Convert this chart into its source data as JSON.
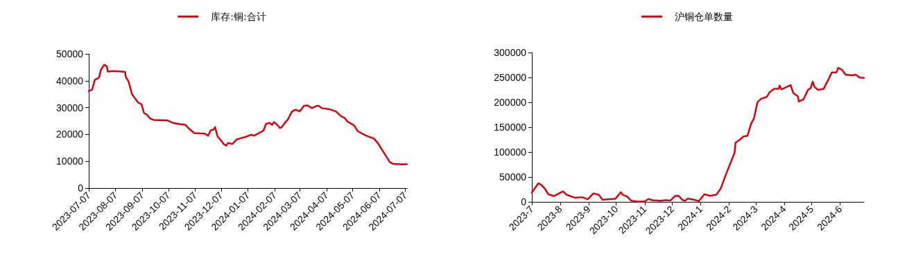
{
  "chart_data": [
    {
      "type": "line",
      "legend": "top",
      "grid": false,
      "marker": "none",
      "line_style": "solid",
      "x": [
        "2023-07-07",
        "2023-07-11",
        "2023-07-14",
        "2023-07-19",
        "2023-07-21",
        "2023-07-25",
        "2023-07-28",
        "2023-07-29",
        "2023-08-05",
        "2023-08-11",
        "2023-08-18",
        "2023-08-19",
        "2023-08-22",
        "2023-08-26",
        "2023-09-02",
        "2023-09-06",
        "2023-09-09",
        "2023-09-12",
        "2023-09-16",
        "2023-09-20",
        "2023-10-06",
        "2023-10-13",
        "2023-10-27",
        "2023-10-31",
        "2023-11-06",
        "2023-11-18",
        "2023-11-22",
        "2023-11-25",
        "2023-11-28",
        "2023-11-30",
        "2023-12-03",
        "2023-12-06",
        "2023-12-10",
        "2023-12-13",
        "2023-12-15",
        "2023-12-20",
        "2023-12-25",
        "2023-12-30",
        "2024-01-04",
        "2024-01-11",
        "2024-01-14",
        "2024-01-20",
        "2024-01-25",
        "2024-01-28",
        "2024-02-01",
        "2024-02-04",
        "2024-02-06",
        "2024-02-09",
        "2024-02-13",
        "2024-02-15",
        "2024-02-20",
        "2024-02-22",
        "2024-02-27",
        "2024-03-02",
        "2024-03-07",
        "2024-03-12",
        "2024-03-16",
        "2024-03-21",
        "2024-03-27",
        "2024-03-29",
        "2024-04-01",
        "2024-04-10",
        "2024-04-18",
        "2024-04-24",
        "2024-04-28",
        "2024-05-01",
        "2024-05-09",
        "2024-05-13",
        "2024-05-23",
        "2024-06-01",
        "2024-06-06",
        "2024-06-13",
        "2024-06-19",
        "2024-06-23",
        "2024-07-03",
        "2024-07-09"
      ],
      "series": [
        {
          "name": "库存:铜:合计",
          "color": "#d7000f",
          "values": [
            36100,
            36700,
            40300,
            41200,
            44000,
            46000,
            45300,
            43400,
            43600,
            43500,
            43300,
            41300,
            39800,
            35000,
            31900,
            31200,
            27900,
            27400,
            25900,
            25400,
            25200,
            24200,
            23500,
            22100,
            20500,
            20300,
            19500,
            21500,
            21700,
            22700,
            19200,
            18100,
            16400,
            15800,
            16800,
            16400,
            18100,
            18600,
            19000,
            19900,
            19500,
            20500,
            21400,
            23900,
            24300,
            23500,
            24600,
            23900,
            22400,
            22600,
            24800,
            25400,
            28500,
            29200,
            28600,
            30700,
            30800,
            29800,
            30700,
            30700,
            29800,
            29400,
            28500,
            26700,
            26100,
            24800,
            23300,
            21200,
            19500,
            18400,
            16400,
            12800,
            9700,
            9000,
            8800,
            8900
          ]
        }
      ],
      "xlim": [
        "2023-07-07",
        "2024-07-09"
      ],
      "xticks": [
        "2023-07-07",
        "2023-08-07",
        "2023-09-07",
        "2023-10-07",
        "2023-11-07",
        "2023-12-07",
        "2024-01-07",
        "2024-02-07",
        "2024-03-07",
        "2024-04-07",
        "2024-05-07",
        "2024-06-07",
        "2024-07-07"
      ],
      "ylim": [
        0,
        50000
      ],
      "yticks": [
        0,
        10000,
        20000,
        30000,
        40000,
        50000
      ]
    },
    {
      "type": "line",
      "legend": "top",
      "grid": false,
      "marker": "none",
      "line_style": "solid",
      "x": [
        "2023-07-01",
        "2023-07-08",
        "2023-07-11",
        "2023-07-15",
        "2023-07-19",
        "2023-07-25",
        "2023-07-29",
        "2023-08-04",
        "2023-08-08",
        "2023-08-17",
        "2023-08-25",
        "2023-08-31",
        "2023-09-06",
        "2023-09-12",
        "2023-09-16",
        "2023-09-30",
        "2023-10-06",
        "2023-10-08",
        "2023-10-13",
        "2023-10-17",
        "2023-10-24",
        "2023-11-01",
        "2023-11-05",
        "2023-11-10",
        "2023-11-18",
        "2023-11-24",
        "2023-11-29",
        "2023-12-04",
        "2023-12-08",
        "2023-12-12",
        "2023-12-15",
        "2023-12-18",
        "2023-12-25",
        "2023-12-30",
        "2024-01-05",
        "2024-01-11",
        "2024-01-18",
        "2024-01-23",
        "2024-01-28",
        "2024-02-07",
        "2024-02-08",
        "2024-02-12",
        "2024-02-17",
        "2024-02-21",
        "2024-02-25",
        "2024-02-28",
        "2024-03-03",
        "2024-03-07",
        "2024-03-13",
        "2024-03-16",
        "2024-03-21",
        "2024-03-26",
        "2024-03-27",
        "2024-03-29",
        "2024-04-04",
        "2024-04-08",
        "2024-04-11",
        "2024-04-16",
        "2024-04-17",
        "2024-04-22",
        "2024-04-27",
        "2024-04-30",
        "2024-05-02",
        "2024-05-04",
        "2024-05-08",
        "2024-05-14",
        "2024-05-19",
        "2024-05-23",
        "2024-05-28",
        "2024-05-30",
        "2024-06-03",
        "2024-06-07",
        "2024-06-14",
        "2024-06-18",
        "2024-06-22",
        "2024-06-27"
      ],
      "series": [
        {
          "name": "沪铜仓单数量",
          "color": "#d7000f",
          "values": [
            18400,
            37200,
            34700,
            27000,
            15300,
            11700,
            15300,
            20900,
            14300,
            8200,
            9200,
            5100,
            16800,
            14300,
            4100,
            6100,
            19400,
            14300,
            10700,
            2600,
            500,
            1000,
            5600,
            3100,
            2000,
            3600,
            2600,
            11700,
            12200,
            4100,
            2000,
            6600,
            4100,
            1500,
            15300,
            12200,
            14300,
            27000,
            52600,
            98500,
            118900,
            124000,
            131600,
            132700,
            157100,
            167300,
            200500,
            207100,
            210700,
            219900,
            227000,
            227000,
            233700,
            226000,
            231100,
            234700,
            218400,
            212200,
            201500,
            205600,
            225000,
            228600,
            241300,
            231100,
            225000,
            227000,
            244900,
            260200,
            260200,
            269400,
            265300,
            255600,
            254100,
            255600,
            249900,
            248900
          ]
        }
      ],
      "xlim": [
        "2023-07-01",
        "2024-06-27"
      ],
      "xticks": [
        {
          "value": "2023-07-01",
          "label": "2023-7"
        },
        {
          "value": "2023-08-01",
          "label": "2023-8"
        },
        {
          "value": "2023-09-01",
          "label": "2023-9"
        },
        {
          "value": "2023-10-01",
          "label": "2023-10"
        },
        {
          "value": "2023-11-01",
          "label": "2023-11"
        },
        {
          "value": "2023-12-01",
          "label": "2023-12"
        },
        {
          "value": "2024-01-01",
          "label": "2024-1"
        },
        {
          "value": "2024-02-01",
          "label": "2024-2"
        },
        {
          "value": "2024-03-01",
          "label": "2024-3"
        },
        {
          "value": "2024-04-01",
          "label": "2024-4"
        },
        {
          "value": "2024-05-01",
          "label": "2024-5"
        },
        {
          "value": "2024-06-01",
          "label": "2024-6"
        }
      ],
      "ylim": [
        0,
        300000
      ],
      "yticks": [
        0,
        50000,
        100000,
        150000,
        200000,
        250000,
        300000
      ]
    }
  ]
}
